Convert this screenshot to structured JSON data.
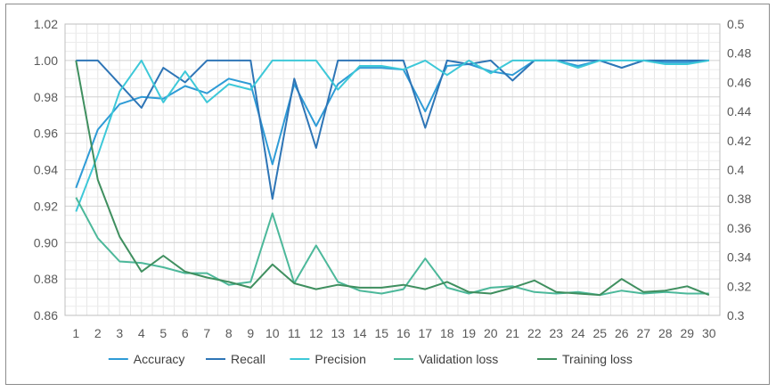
{
  "chart_data": {
    "type": "line",
    "title": "",
    "xlabel": "",
    "ylabel": "",
    "categories": [
      1,
      2,
      3,
      4,
      5,
      6,
      7,
      8,
      9,
      10,
      11,
      12,
      13,
      14,
      15,
      16,
      17,
      18,
      19,
      20,
      21,
      22,
      23,
      24,
      25,
      26,
      27,
      28,
      29,
      30
    ],
    "ylim": [
      0.86,
      1.02
    ],
    "y_ticks": [
      "0.86",
      "0.88",
      "0.90",
      "0.92",
      "0.94",
      "0.96",
      "0.98",
      "1.00",
      "1.02"
    ],
    "y2lim": [
      0.3,
      0.5
    ],
    "y2_ticks": [
      "0.3",
      "0.32",
      "0.34",
      "0.36",
      "0.38",
      "0.4",
      "0.42",
      "0.44",
      "0.46",
      "0.48",
      "0.5"
    ],
    "grid": true,
    "legend_position": "bottom",
    "series": [
      {
        "name": "Accuracy",
        "axis": "left",
        "color": "#2e9bd6",
        "values": [
          0.93,
          0.962,
          0.976,
          0.98,
          0.979,
          0.986,
          0.982,
          0.99,
          0.987,
          0.943,
          0.987,
          0.964,
          0.987,
          0.996,
          0.996,
          0.995,
          0.972,
          0.997,
          0.998,
          0.994,
          0.992,
          1.0,
          1.0,
          0.997,
          1.0,
          0.996,
          1.0,
          0.999,
          0.999,
          1.0
        ]
      },
      {
        "name": "Recall",
        "axis": "left",
        "color": "#2e75b6",
        "values": [
          1.0,
          1.0,
          0.987,
          0.974,
          0.996,
          0.988,
          1.0,
          1.0,
          1.0,
          0.924,
          0.99,
          0.952,
          1.0,
          1.0,
          1.0,
          1.0,
          0.963,
          1.0,
          0.998,
          1.0,
          0.989,
          1.0,
          1.0,
          1.0,
          1.0,
          0.996,
          1.0,
          1.0,
          1.0,
          1.0
        ]
      },
      {
        "name": "Precision",
        "axis": "left",
        "color": "#3dc8d8",
        "values": [
          0.917,
          0.948,
          0.983,
          1.0,
          0.977,
          0.994,
          0.977,
          0.987,
          0.984,
          1.0,
          1.0,
          1.0,
          0.984,
          0.997,
          0.997,
          0.995,
          1.0,
          0.992,
          1.0,
          0.993,
          1.0,
          1.0,
          1.0,
          0.996,
          1.0,
          1.0,
          1.0,
          0.998,
          0.998,
          1.0
        ]
      },
      {
        "name": "Validation loss",
        "axis": "right",
        "color": "#4cb89a",
        "values": [
          0.381,
          0.353,
          0.337,
          0.336,
          0.333,
          0.329,
          0.329,
          0.321,
          0.323,
          0.37,
          0.322,
          0.348,
          0.323,
          0.317,
          0.315,
          0.318,
          0.339,
          0.319,
          0.315,
          0.319,
          0.32,
          0.316,
          0.315,
          0.316,
          0.314,
          0.317,
          0.315,
          0.316,
          0.315,
          0.315
        ]
      },
      {
        "name": "Training loss",
        "axis": "right",
        "color": "#3f8f5f",
        "values": [
          0.475,
          0.393,
          0.354,
          0.33,
          0.341,
          0.33,
          0.326,
          0.323,
          0.319,
          0.335,
          0.322,
          0.318,
          0.321,
          0.319,
          0.319,
          0.321,
          0.318,
          0.323,
          0.316,
          0.315,
          0.319,
          0.324,
          0.316,
          0.315,
          0.314,
          0.325,
          0.316,
          0.317,
          0.32,
          0.314
        ]
      }
    ]
  }
}
